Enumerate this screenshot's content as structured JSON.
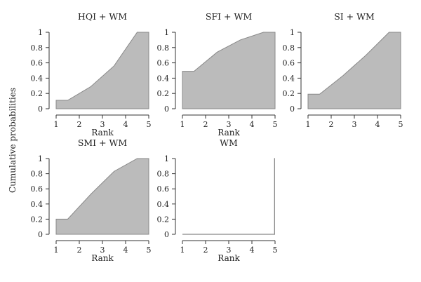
{
  "figure": {
    "ylabel": "Cumulative probabilities"
  },
  "chart_data": [
    {
      "type": "area",
      "title": "HQI + WM",
      "xlabel": "Rank",
      "ylabel": "",
      "x": [
        1,
        1.5,
        2.5,
        3.5,
        4.5,
        5
      ],
      "values": [
        0.11,
        0.11,
        0.29,
        0.56,
        1.0,
        1.0
      ],
      "xlim": [
        1,
        5
      ],
      "ylim": [
        0,
        1
      ],
      "xticks": [
        1,
        2,
        3,
        4,
        5
      ],
      "yticks": [
        0,
        0.2,
        0.4,
        0.6,
        0.8,
        1
      ],
      "fill_color": "#bbbbbb",
      "line_color": "#888888"
    },
    {
      "type": "area",
      "title": "SFI + WM",
      "xlabel": "Rank",
      "ylabel": "",
      "x": [
        1,
        1.5,
        2.5,
        3.5,
        4.5,
        5
      ],
      "values": [
        0.49,
        0.49,
        0.74,
        0.9,
        1.0,
        1.0
      ],
      "xlim": [
        1,
        5
      ],
      "ylim": [
        0,
        1
      ],
      "xticks": [
        1,
        2,
        3,
        4,
        5
      ],
      "yticks": [
        0,
        0.2,
        0.4,
        0.6,
        0.8,
        1
      ],
      "fill_color": "#bbbbbb",
      "line_color": "#888888"
    },
    {
      "type": "area",
      "title": "SI + WM",
      "xlabel": "",
      "ylabel": "",
      "x": [
        1,
        1.5,
        2.5,
        3.5,
        4.5,
        5
      ],
      "values": [
        0.19,
        0.19,
        0.43,
        0.7,
        1.0,
        1.0
      ],
      "xlim": [
        1,
        5
      ],
      "ylim": [
        0,
        1
      ],
      "xticks": [
        1,
        2,
        3,
        4,
        5
      ],
      "yticks": [
        0,
        0.2,
        0.4,
        0.6,
        0.8,
        1
      ],
      "fill_color": "#bbbbbb",
      "line_color": "#888888"
    },
    {
      "type": "area",
      "title": "SMI + WM",
      "xlabel": "Rank",
      "ylabel": "",
      "x": [
        1,
        1.5,
        2.5,
        3.5,
        4.5,
        5
      ],
      "values": [
        0.2,
        0.2,
        0.53,
        0.83,
        1.0,
        1.0
      ],
      "xlim": [
        1,
        5
      ],
      "ylim": [
        0,
        1
      ],
      "xticks": [
        1,
        2,
        3,
        4,
        5
      ],
      "yticks": [
        0,
        0.2,
        0.4,
        0.6,
        0.8,
        1
      ],
      "fill_color": "#bbbbbb",
      "line_color": "#888888"
    },
    {
      "type": "line",
      "title": "WM",
      "xlabel": "Rank",
      "ylabel": "",
      "x": [
        1,
        4.98,
        4.98,
        5
      ],
      "values": [
        0,
        0,
        1.0,
        1.0
      ],
      "xlim": [
        1,
        5
      ],
      "ylim": [
        0,
        1
      ],
      "xticks": [
        1,
        2,
        3,
        4,
        5
      ],
      "yticks": [
        0,
        0.2,
        0.4,
        0.6,
        0.8,
        1
      ],
      "fill_color": "#bbbbbb",
      "line_color": "#888888"
    }
  ]
}
